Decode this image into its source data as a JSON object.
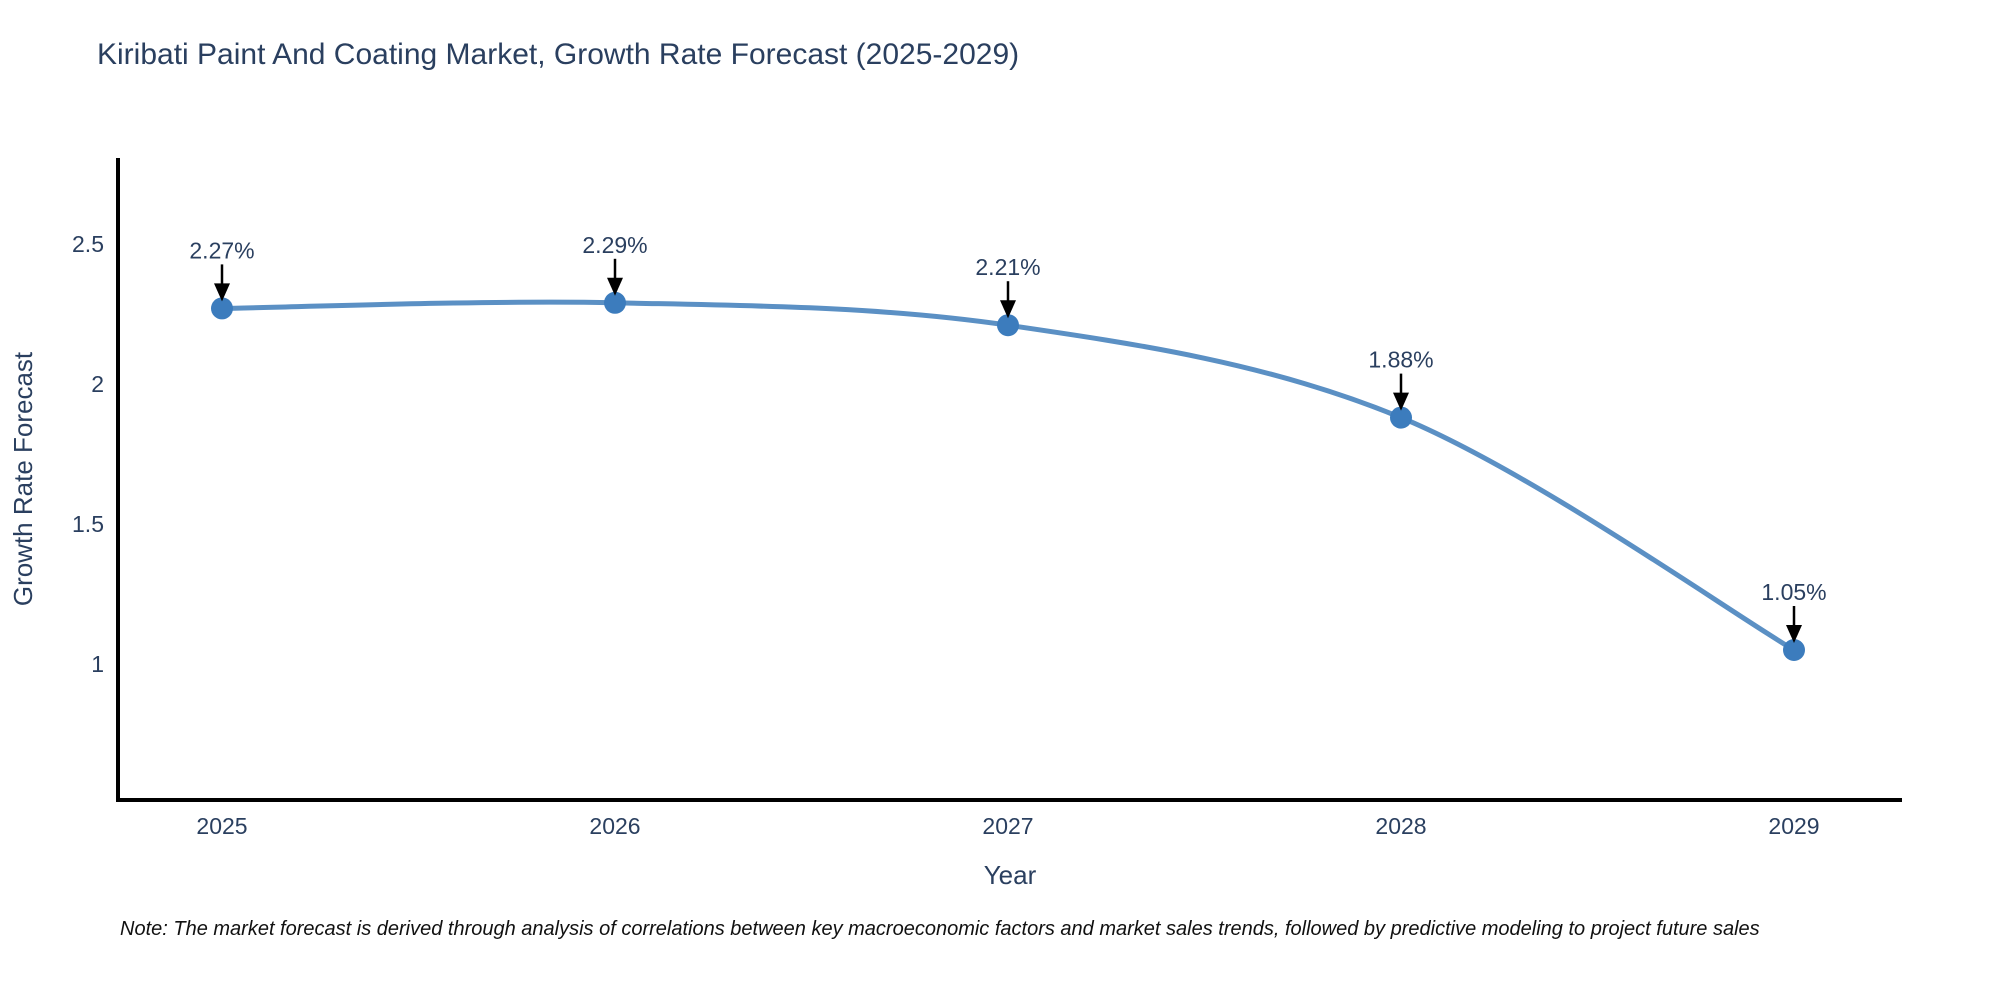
{
  "page": {
    "background_color": "#ffffff"
  },
  "chart_data": {
    "type": "line",
    "title": "Kiribati Paint And Coating Market, Growth Rate Forecast (2025-2029)",
    "xlabel": "Year",
    "ylabel": "Growth Rate Forecast",
    "categories": [
      "2025",
      "2026",
      "2027",
      "2028",
      "2029"
    ],
    "series": [
      {
        "name": "Growth Rate Forecast",
        "values": [
          2.27,
          2.29,
          2.21,
          1.88,
          1.05
        ]
      }
    ],
    "point_labels": [
      "2.27%",
      "2.29%",
      "2.21%",
      "1.88%",
      "1.05%"
    ],
    "y_ticks": [
      1,
      1.5,
      2,
      2.5
    ],
    "ylim": [
      0.51,
      2.8
    ],
    "grid": false,
    "legend_position": "none",
    "line_shape": "spline",
    "annotations_have_arrows": true,
    "colors": {
      "line": "#5b90c4",
      "marker": "#3c7cbd",
      "axis": "#000000",
      "text": "#2a3f5f",
      "arrow": "#000000"
    },
    "note": "Note: The market forecast is derived through analysis of correlations between key macroeconomic factors and market sales trends, followed by predictive modeling to project future sales"
  }
}
